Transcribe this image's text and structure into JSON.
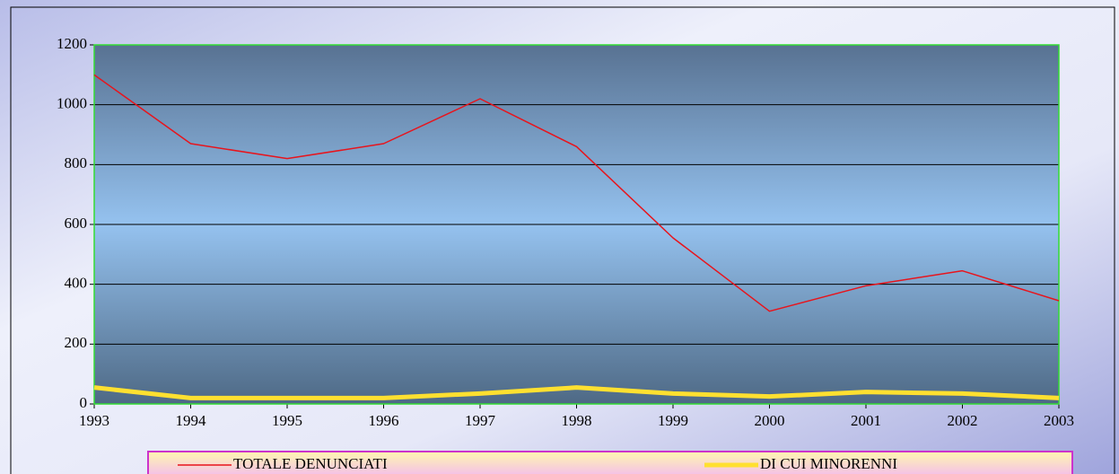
{
  "chart_data": {
    "type": "line",
    "x": [
      1993,
      1994,
      1995,
      1996,
      1997,
      1998,
      1999,
      2000,
      2001,
      2002,
      2003
    ],
    "xlim": [
      1993,
      2003
    ],
    "xticks": [
      1993,
      1994,
      1995,
      1996,
      1997,
      1998,
      1999,
      2000,
      2001,
      2002,
      2003
    ],
    "ylim": [
      0,
      1200
    ],
    "yticks": [
      0,
      200,
      400,
      600,
      800,
      1000,
      1200
    ],
    "grid": true,
    "legend": "bottom",
    "series": [
      {
        "name": "TOTALE DENUNCIATI",
        "color": "#e8141c",
        "values": [
          1100,
          870,
          820,
          870,
          1020,
          860,
          555,
          310,
          395,
          445,
          345
        ]
      },
      {
        "name": "DI CUI MINORENNI",
        "color": "#ffe030",
        "values": [
          55,
          20,
          20,
          20,
          35,
          55,
          35,
          25,
          40,
          35,
          20
        ]
      }
    ]
  }
}
